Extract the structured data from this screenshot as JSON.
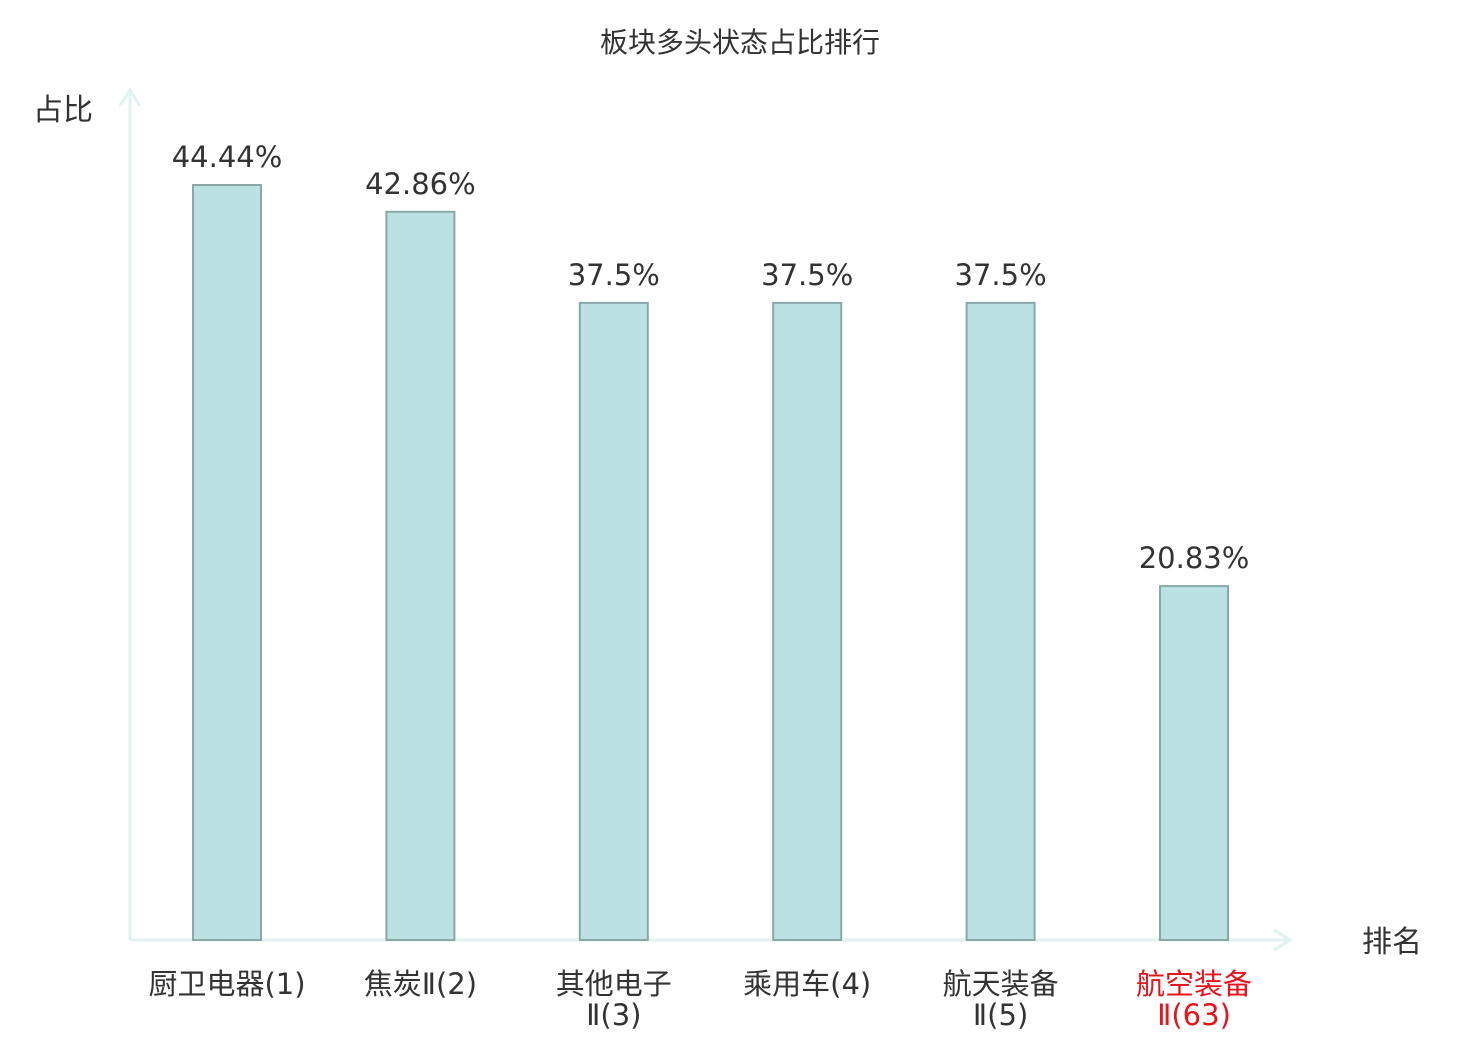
{
  "chart_data": {
    "type": "bar",
    "title": "板块多头状态占比排行",
    "ylabel": "占比",
    "xlabel": "排名",
    "ylim": [
      0,
      44.44
    ],
    "grid": false,
    "categories": [
      {
        "lines": [
          "厨卫电器(1)"
        ],
        "highlight": false
      },
      {
        "lines": [
          "焦炭Ⅱ(2)"
        ],
        "highlight": false
      },
      {
        "lines": [
          "其他电子",
          "Ⅱ(3)"
        ],
        "highlight": false
      },
      {
        "lines": [
          "乘用车(4)"
        ],
        "highlight": false
      },
      {
        "lines": [
          "航天装备",
          "Ⅱ(5)"
        ],
        "highlight": false
      },
      {
        "lines": [
          "航空装备",
          "Ⅱ(63)"
        ],
        "highlight": true
      }
    ],
    "values": [
      44.44,
      42.86,
      37.5,
      37.5,
      37.5,
      20.83
    ],
    "value_labels": [
      "44.44%",
      "42.86%",
      "37.5%",
      "37.5%",
      "37.5%",
      "20.83%"
    ]
  },
  "colors": {
    "bar_fill": "#bce1e3",
    "bar_stroke": "#8ba8a8",
    "axis": "#e0f3f0",
    "text": "#333333",
    "highlight": "#e6141c"
  }
}
